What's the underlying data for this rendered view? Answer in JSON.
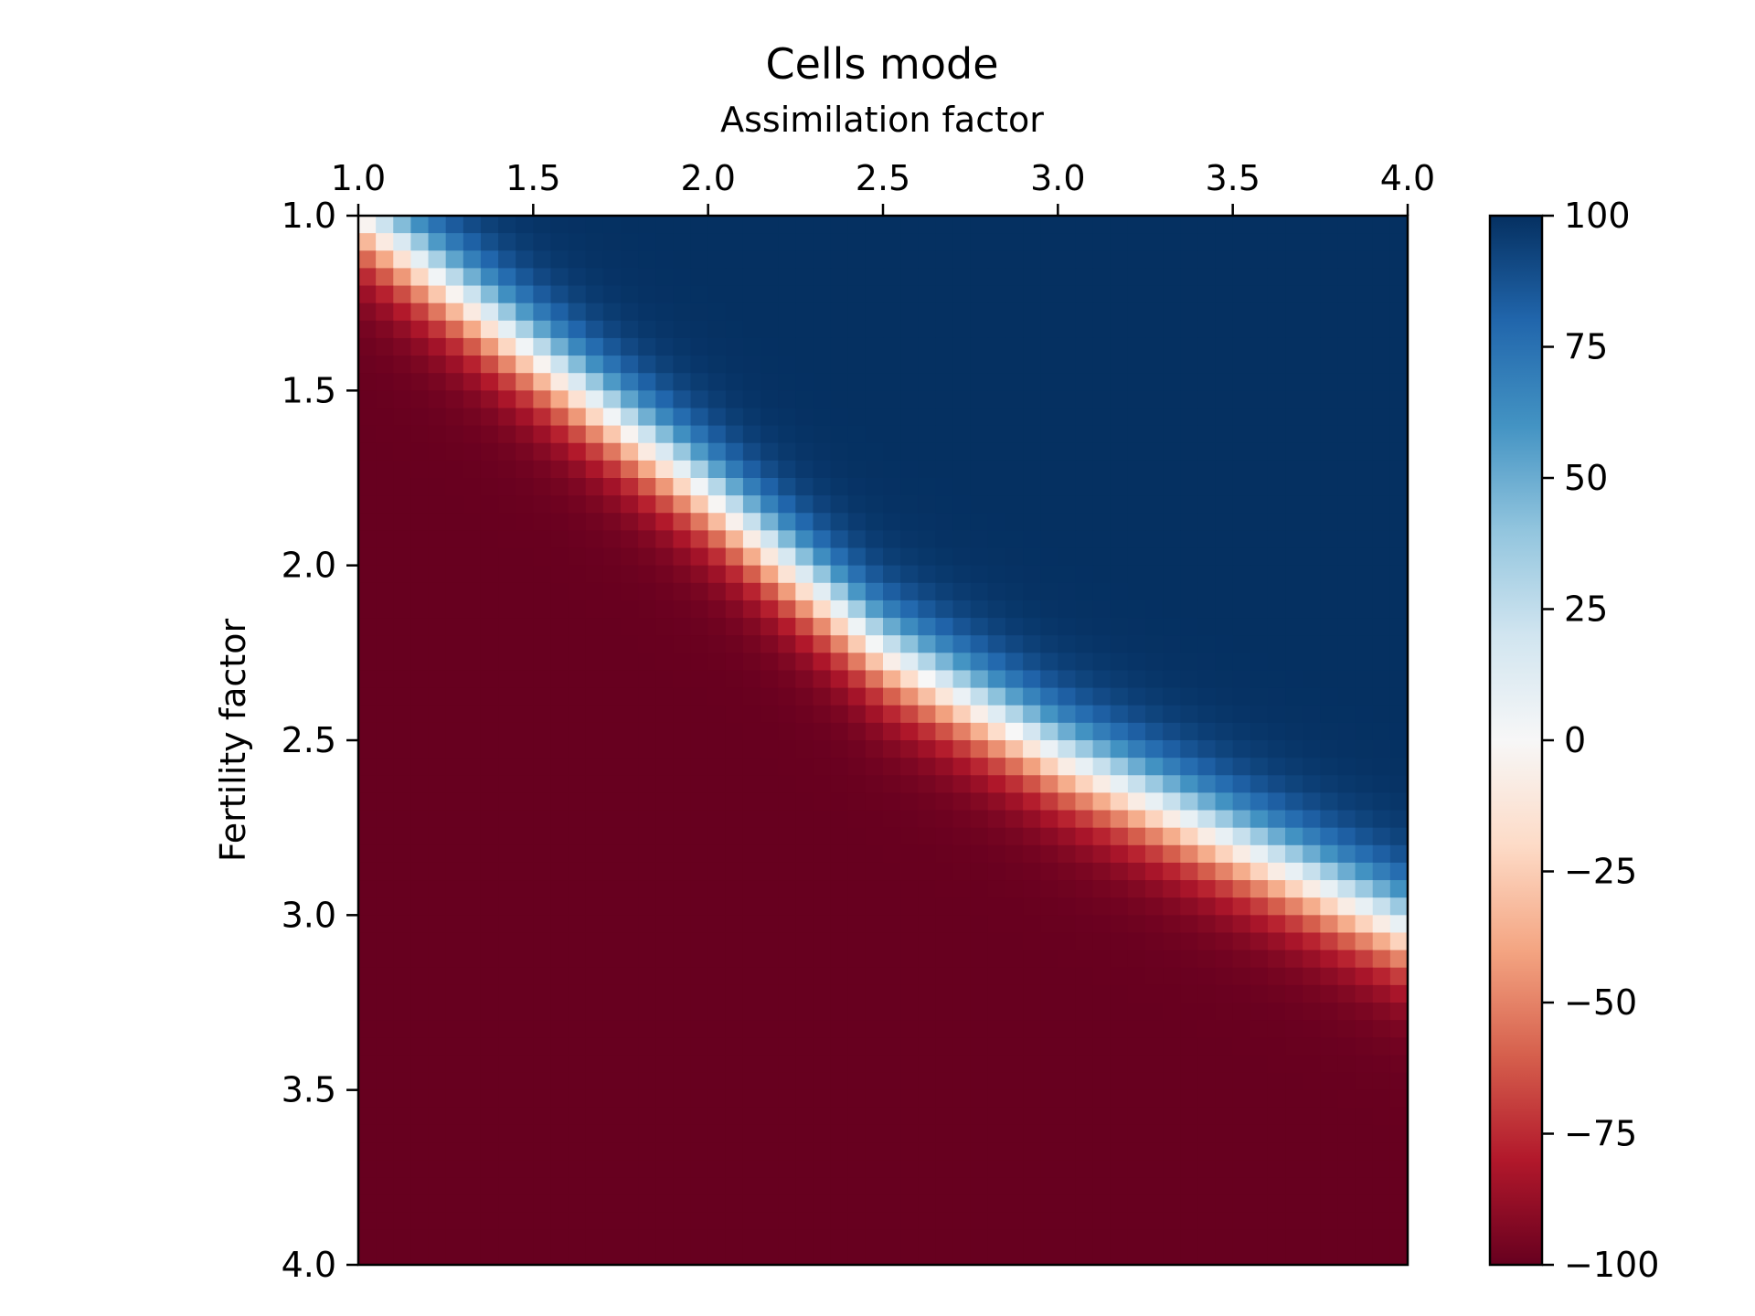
{
  "chart_data": {
    "type": "heatmap",
    "title": "Cells mode",
    "xlabel": "Assimilation factor",
    "ylabel": "Fertility factor",
    "xlim": [
      1.0,
      4.0
    ],
    "ylim": [
      1.0,
      4.0
    ],
    "x_axis_position": "top",
    "y_axis_inverted": true,
    "grid_size": [
      60,
      60
    ],
    "x_ticks": [
      "1.0",
      "1.5",
      "2.0",
      "2.5",
      "3.0",
      "3.5",
      "4.0"
    ],
    "y_ticks": [
      "1.0",
      "1.5",
      "2.0",
      "2.5",
      "3.0",
      "3.5",
      "4.0"
    ],
    "value_range": [
      -100,
      100
    ],
    "colormap": "RdBu",
    "colormap_stops": [
      "#67001f",
      "#b2182b",
      "#d6604d",
      "#f4a582",
      "#fddbc7",
      "#f7f7f7",
      "#d1e5f0",
      "#92c5de",
      "#4393c3",
      "#2166ac",
      "#053061"
    ],
    "colorbar_ticks": [
      "100",
      "75",
      "50",
      "25",
      "0",
      "−25",
      "−50",
      "−75",
      "−100"
    ],
    "boundary": [
      {
        "x": 1.0,
        "y": 1.0
      },
      {
        "x": 1.5,
        "y": 1.4
      },
      {
        "x": 2.0,
        "y": 1.8
      },
      {
        "x": 2.5,
        "y": 2.25
      },
      {
        "x": 3.0,
        "y": 2.55
      },
      {
        "x": 3.5,
        "y": 2.8
      },
      {
        "x": 4.0,
        "y": 3.05
      }
    ]
  }
}
